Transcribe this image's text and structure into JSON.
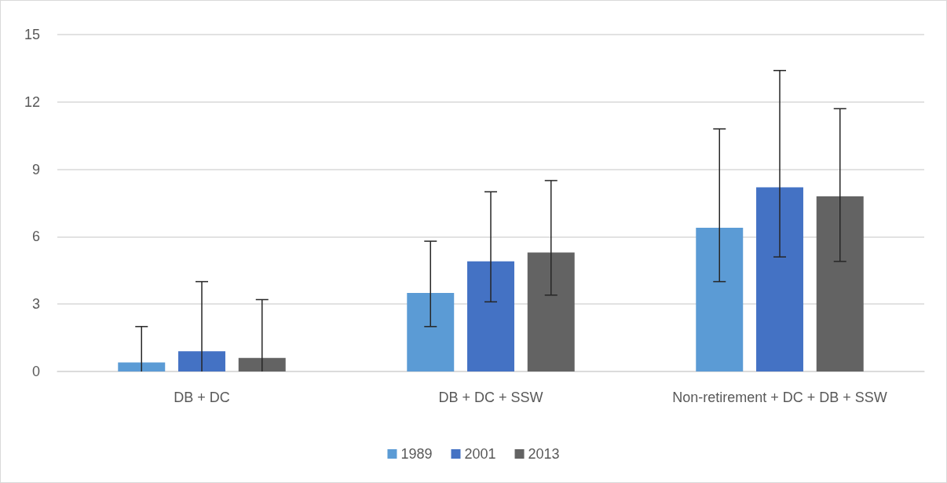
{
  "chart_data": {
    "type": "bar",
    "categories": [
      "DB + DC",
      "DB + DC + SSW",
      "Non-retirement + DC + DB + SSW"
    ],
    "series": [
      {
        "name": "1989",
        "color": "#5b9bd5",
        "values": [
          0.4,
          3.5,
          6.4
        ],
        "errors": [
          [
            0,
            2.0
          ],
          [
            2.0,
            5.8
          ],
          [
            4.0,
            10.8
          ]
        ]
      },
      {
        "name": "2001",
        "color": "#4472c4",
        "values": [
          0.9,
          4.9,
          8.2
        ],
        "errors": [
          [
            0,
            4.0
          ],
          [
            3.1,
            8.0
          ],
          [
            5.1,
            13.4
          ]
        ]
      },
      {
        "name": "2013",
        "color": "#636363",
        "values": [
          0.6,
          5.3,
          7.8
        ],
        "errors": [
          [
            0,
            3.2
          ],
          [
            3.4,
            8.5
          ],
          [
            4.9,
            11.7
          ]
        ]
      }
    ],
    "ylim": [
      0,
      15
    ],
    "yticks": [
      0,
      3,
      6,
      9,
      12,
      15
    ],
    "grid": "y",
    "legend": "bottom"
  }
}
